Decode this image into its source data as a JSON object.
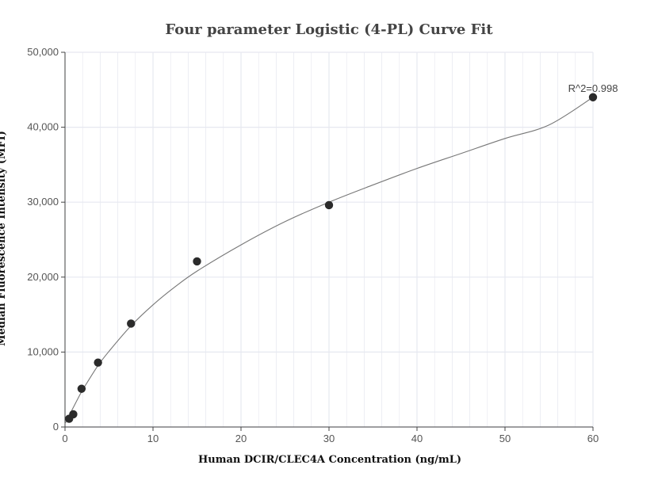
{
  "chart_data": {
    "type": "scatter",
    "title": "Four parameter Logistic (4-PL) Curve Fit",
    "xlabel": "Human DCIR/CLEC4A Concentration (ng/mL)",
    "ylabel": "Median Fluorescence Intensity (MFI)",
    "xlim": [
      0,
      60
    ],
    "ylim": [
      0,
      50000
    ],
    "xticks": [
      0,
      10,
      20,
      30,
      40,
      50,
      60
    ],
    "xtick_labels": [
      "0",
      "10",
      "20",
      "30",
      "40",
      "50",
      "60"
    ],
    "yticks": [
      0,
      10000,
      20000,
      30000,
      40000,
      50000
    ],
    "ytick_labels": [
      "0",
      "10,000",
      "20,000",
      "30,000",
      "40,000",
      "50,000"
    ],
    "grid": true,
    "points": {
      "x": [
        0.47,
        0.94,
        1.88,
        3.75,
        7.5,
        15,
        30,
        60
      ],
      "y": [
        1100,
        1700,
        5100,
        8600,
        13800,
        22100,
        29600,
        44000
      ]
    },
    "fit_curve": {
      "x": [
        0,
        0.47,
        0.94,
        1.88,
        2.5,
        3.75,
        5,
        7.5,
        10,
        12.5,
        15,
        20,
        25,
        30,
        35,
        40,
        45,
        50,
        55,
        60
      ],
      "y": [
        450,
        1500,
        2600,
        4700,
        5900,
        8200,
        10100,
        13500,
        16300,
        18700,
        20800,
        24300,
        27400,
        30000,
        32300,
        34500,
        36500,
        38500,
        40300,
        44000
      ]
    },
    "annotation": "R^2=0.998",
    "colors": {
      "points": "#2b2b2b",
      "curve": "#777777",
      "grid": "#e6e8f0",
      "axis": "#444444"
    }
  }
}
